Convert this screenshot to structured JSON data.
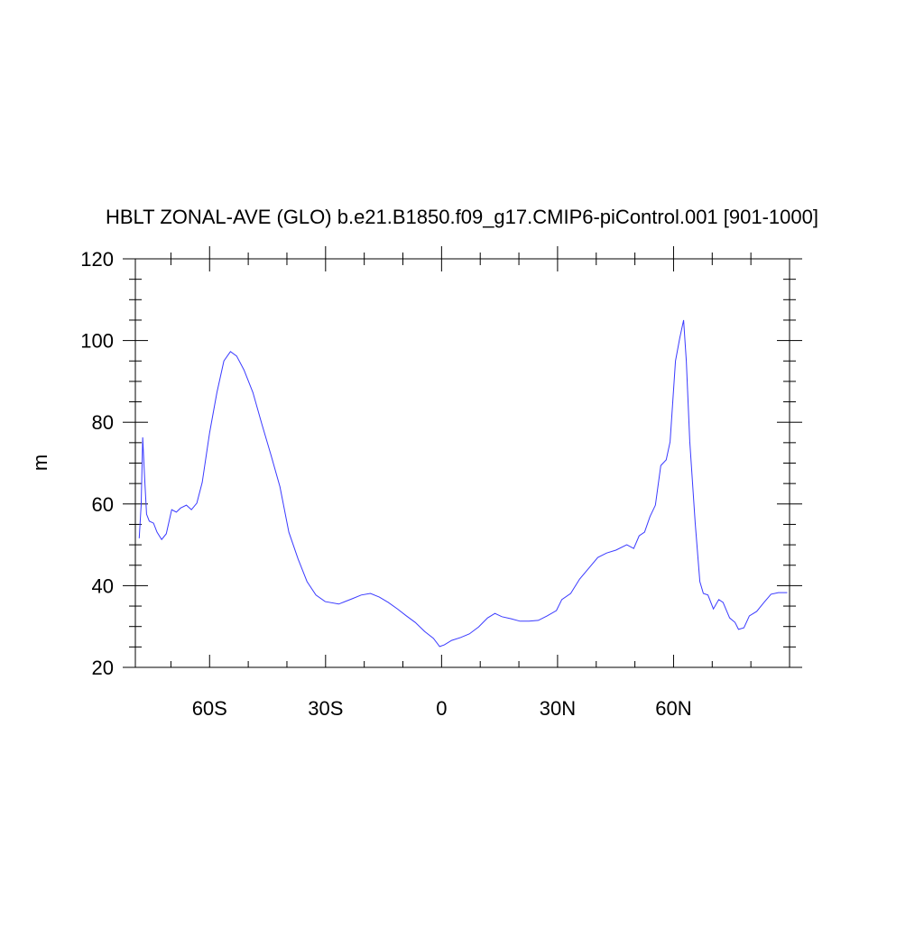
{
  "chart_data": {
    "type": "line",
    "title": "HBLT ZONAL-AVE (GLO) b.e21.B1850.f09_g17.CMIP6-piControl.001 [901-1000]",
    "ylabel": "m",
    "xlim": [
      -79.2,
      90
    ],
    "ylim": [
      20,
      120
    ],
    "xticks": [
      {
        "value": -60,
        "label": "60S"
      },
      {
        "value": -30,
        "label": "30S"
      },
      0,
      {
        "value": 30,
        "label": "30N"
      },
      {
        "value": 60,
        "label": "60N"
      }
    ],
    "xminorticks": [
      -70,
      -50,
      -40,
      -20,
      -10,
      10,
      20,
      40,
      50,
      70,
      80
    ],
    "yticks": [
      20,
      40,
      60,
      80,
      100,
      120
    ],
    "yminorticks": [
      25,
      30,
      35,
      45,
      50,
      55,
      65,
      70,
      75,
      85,
      90,
      95,
      105,
      110,
      115
    ],
    "series": [
      {
        "color": "#3a3aff",
        "x": [
          -78.2,
          -77.7,
          -77.3,
          -76.8,
          -76.3,
          -75.6,
          -74.5,
          -73.6,
          -72.4,
          -71.2,
          -69.8,
          -68.6,
          -67.5,
          -66,
          -64.7,
          -63.3,
          -61.9,
          -60,
          -58.1,
          -56.3,
          -54.6,
          -53,
          -51.1,
          -48.8,
          -46.5,
          -44.1,
          -41.8,
          -39.5,
          -37.1,
          -34.8,
          -32.5,
          -30.1,
          -26.6,
          -23.1,
          -20.8,
          -18.4,
          -16.1,
          -13.8,
          -11.4,
          -9.1,
          -6.8,
          -4.4,
          -2.1,
          -0.5,
          0.7,
          2.6,
          4.9,
          7.2,
          9.6,
          11.9,
          13.8,
          15.6,
          18,
          20.3,
          22.6,
          25,
          27.3,
          29.7,
          31.1,
          33.4,
          35.7,
          38.1,
          40.4,
          42.7,
          45.1,
          47.9,
          49.7,
          51.1,
          52.5,
          53.9,
          55.3,
          56.7,
          58.1,
          59.1,
          60.5,
          61.6,
          62.6,
          63.3,
          64.2,
          65.6,
          66.8,
          67.7,
          68.9,
          70.3,
          71.7,
          72.8,
          74.5,
          75.9,
          76.8,
          78.2,
          79.6,
          81.5,
          83.4,
          85.2,
          87.1,
          89.4
        ],
        "values": [
          51.6,
          59.7,
          76.3,
          66.4,
          57.5,
          55.8,
          55.3,
          53.1,
          51.3,
          52.7,
          58.6,
          58,
          59,
          59.7,
          58.6,
          60.2,
          65.3,
          77.4,
          87.3,
          95,
          97.3,
          96.2,
          92.8,
          87.3,
          79.6,
          71.9,
          64.2,
          53.1,
          46.5,
          41,
          37.7,
          36.1,
          35.5,
          36.8,
          37.7,
          38.1,
          37.2,
          35.9,
          34.3,
          32.6,
          31,
          28.8,
          27.1,
          25.1,
          25.5,
          26.6,
          27.3,
          28.2,
          29.9,
          32.1,
          33.2,
          32.4,
          31.9,
          31.3,
          31.3,
          31.5,
          32.6,
          33.9,
          36.6,
          38.1,
          41.6,
          44.3,
          46.9,
          48,
          48.7,
          50,
          49.1,
          52.2,
          53.1,
          56.9,
          59.7,
          69.4,
          70.8,
          75.2,
          95,
          100.6,
          105,
          95,
          75.2,
          55.3,
          41,
          38.1,
          37.7,
          34.3,
          36.6,
          35.9,
          32.1,
          31,
          29.3,
          29.7,
          32.6,
          33.7,
          35.9,
          37.9,
          38.3,
          38.3
        ]
      }
    ]
  }
}
